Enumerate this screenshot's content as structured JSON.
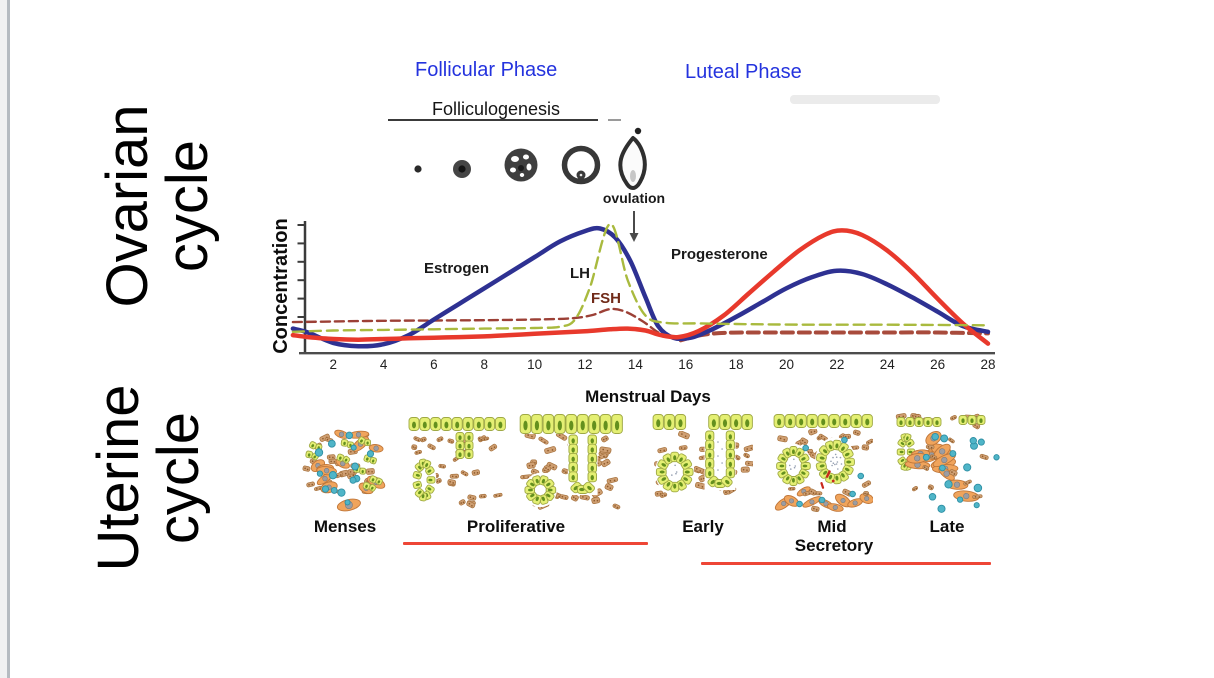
{
  "page": {
    "background": "#ffffff",
    "margin_strip_color": "#f0f1f2",
    "margin_line_color": "#b5bbc1",
    "accent_blue": "#2433de",
    "underline_red": "#ee4636"
  },
  "side_labels": {
    "ovarian": {
      "line1": "Ovarian",
      "line2": "cycle"
    },
    "uterine": {
      "line1": "Uterine",
      "line2": "cycle"
    }
  },
  "phase_labels": {
    "follicular": "Follicular Phase",
    "luteal": "Luteal Phase"
  },
  "folliculogenesis": {
    "title": "Folliculogenesis",
    "ovulation": "ovulation"
  },
  "chart_data": {
    "type": "line",
    "title": "",
    "xlabel": "Menstrual Days",
    "ylabel": "Concentration",
    "xlim": [
      0.4,
      28
    ],
    "ylim": [
      0,
      1
    ],
    "x_ticks": [
      2,
      4,
      6,
      8,
      10,
      12,
      14,
      16,
      18,
      20,
      22,
      24,
      26,
      28
    ],
    "grid": false,
    "legend_position": "inline-labels",
    "series": [
      {
        "name": "Estrogen",
        "color": "#2e3192",
        "segments": [
          {
            "width": 4.5,
            "points": [
              [
                0.4,
                0.18
              ],
              [
                1,
                0.15
              ],
              [
                2,
                0.07
              ],
              [
                3,
                0.045
              ],
              [
                4,
                0.06
              ],
              [
                5,
                0.13
              ],
              [
                6,
                0.25
              ],
              [
                7,
                0.37
              ],
              [
                8,
                0.49
              ],
              [
                9,
                0.61
              ],
              [
                10,
                0.73
              ],
              [
                11,
                0.85
              ],
              [
                12,
                0.93
              ],
              [
                12.6,
                0.95
              ],
              [
                13.2,
                0.88
              ],
              [
                13.8,
                0.7
              ],
              [
                14.4,
                0.42
              ],
              [
                14.9,
                0.2
              ],
              [
                15.5,
                0.11
              ],
              [
                16.2,
                0.11
              ],
              [
                17,
                0.17
              ],
              [
                18,
                0.27
              ],
              [
                19,
                0.38
              ],
              [
                20,
                0.49
              ],
              [
                21,
                0.575
              ],
              [
                22,
                0.625
              ],
              [
                23,
                0.6
              ],
              [
                24,
                0.52
              ],
              [
                25,
                0.42
              ],
              [
                26,
                0.31
              ],
              [
                27,
                0.2
              ],
              [
                28,
                0.155
              ]
            ]
          }
        ]
      },
      {
        "name": "Progesterone",
        "color": "#e8392c",
        "segments": [
          {
            "width": 4.5,
            "points": [
              [
                0.4,
                0.13
              ],
              [
                1,
                0.115
              ],
              [
                2,
                0.1
              ],
              [
                3,
                0.095
              ],
              [
                4,
                0.1
              ],
              [
                5,
                0.105
              ],
              [
                6,
                0.11
              ],
              [
                7,
                0.115
              ],
              [
                8,
                0.12
              ],
              [
                9,
                0.13
              ],
              [
                10,
                0.14
              ],
              [
                11,
                0.15
              ],
              [
                12,
                0.16
              ],
              [
                13,
                0.175
              ],
              [
                13.7,
                0.18
              ],
              [
                14.4,
                0.165
              ],
              [
                15,
                0.13
              ],
              [
                15.7,
                0.115
              ],
              [
                16.5,
                0.16
              ],
              [
                17.5,
                0.28
              ],
              [
                18.5,
                0.45
              ],
              [
                19.5,
                0.62
              ],
              [
                20.5,
                0.78
              ],
              [
                21.5,
                0.9
              ],
              [
                22.2,
                0.935
              ],
              [
                23,
                0.9
              ],
              [
                24,
                0.78
              ],
              [
                25,
                0.61
              ],
              [
                26,
                0.41
              ],
              [
                27,
                0.22
              ],
              [
                28,
                0.065
              ]
            ]
          }
        ]
      },
      {
        "name": "LH",
        "color": "#a9ba3e",
        "segments": [
          {
            "width": 2.4,
            "dash": "11 6",
            "points": [
              [
                0.4,
                0.155
              ],
              [
                2,
                0.165
              ],
              [
                4,
                0.17
              ],
              [
                6,
                0.175
              ],
              [
                8,
                0.18
              ],
              [
                10,
                0.185
              ],
              [
                11,
                0.195
              ],
              [
                11.6,
                0.25
              ],
              [
                12.2,
                0.5
              ],
              [
                13,
                0.985
              ],
              [
                13.7,
                0.55
              ],
              [
                14.4,
                0.28
              ],
              [
                15.2,
                0.225
              ],
              [
                16.5,
                0.22
              ],
              [
                18,
                0.215
              ],
              [
                21,
                0.21
              ],
              [
                24,
                0.21
              ],
              [
                28,
                0.205
              ]
            ]
          }
        ]
      },
      {
        "name": "FSH",
        "color": "#9c4036",
        "segments": [
          {
            "width": 2.4,
            "dash": "9 5",
            "points": [
              [
                0.4,
                0.23
              ],
              [
                2,
                0.235
              ],
              [
                4,
                0.24
              ],
              [
                6,
                0.242
              ],
              [
                8,
                0.245
              ],
              [
                10,
                0.25
              ],
              [
                11.5,
                0.26
              ],
              [
                12.3,
                0.285
              ],
              [
                13,
                0.33
              ],
              [
                13.6,
                0.31
              ],
              [
                14.3,
                0.235
              ],
              [
                15,
                0.14
              ],
              [
                15.8,
                0.09
              ]
            ]
          },
          {
            "width": 4.0,
            "dash": "11 6",
            "color": "#a84b3c",
            "points": [
              [
                15.8,
                0.09
              ],
              [
                16.6,
                0.13
              ],
              [
                17.6,
                0.148
              ],
              [
                19,
                0.15
              ],
              [
                21,
                0.15
              ],
              [
                24,
                0.15
              ],
              [
                26,
                0.15
              ],
              [
                28,
                0.143
              ]
            ]
          }
        ]
      }
    ]
  },
  "uterine": {
    "labels": {
      "menses": "Menses",
      "proliferative": "Proliferative",
      "early": "Early",
      "mid": "Mid",
      "secretory": "Secretory",
      "late": "Late"
    },
    "panels": [
      {
        "stage": "menses"
      },
      {
        "stage": "early-proliferative"
      },
      {
        "stage": "late-proliferative"
      },
      {
        "stage": "early-secretory"
      },
      {
        "stage": "mid-secretory"
      },
      {
        "stage": "late-secretory"
      }
    ]
  }
}
